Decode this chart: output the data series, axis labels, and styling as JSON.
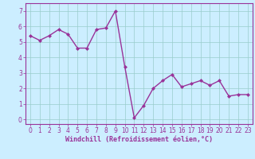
{
  "x": [
    0,
    1,
    2,
    3,
    4,
    5,
    6,
    7,
    8,
    9,
    10,
    11,
    12,
    13,
    14,
    15,
    16,
    17,
    18,
    19,
    20,
    21,
    22,
    23
  ],
  "y": [
    5.4,
    5.1,
    5.4,
    5.8,
    5.5,
    4.6,
    4.6,
    5.8,
    5.9,
    7.0,
    3.4,
    0.1,
    0.9,
    2.0,
    2.5,
    2.9,
    2.1,
    2.3,
    2.5,
    2.2,
    2.5,
    1.5,
    1.6,
    1.6
  ],
  "line_color": "#993399",
  "marker": "D",
  "marker_size": 2.0,
  "bg_color": "#cceeff",
  "plot_bg_color": "#cceeff",
  "grid_color": "#99cccc",
  "bottom_bar_color": "#993399",
  "xlabel": "Windchill (Refroidissement éolien,°C)",
  "xlim": [
    -0.5,
    23.5
  ],
  "ylim": [
    -0.3,
    7.5
  ],
  "xticks": [
    0,
    1,
    2,
    3,
    4,
    5,
    6,
    7,
    8,
    9,
    10,
    11,
    12,
    13,
    14,
    15,
    16,
    17,
    18,
    19,
    20,
    21,
    22,
    23
  ],
  "yticks": [
    0,
    1,
    2,
    3,
    4,
    5,
    6,
    7
  ],
  "tick_fontsize": 5.5,
  "xlabel_fontsize": 6.0,
  "axis_color": "#993399",
  "spine_color": "#993399",
  "line_width": 1.0
}
